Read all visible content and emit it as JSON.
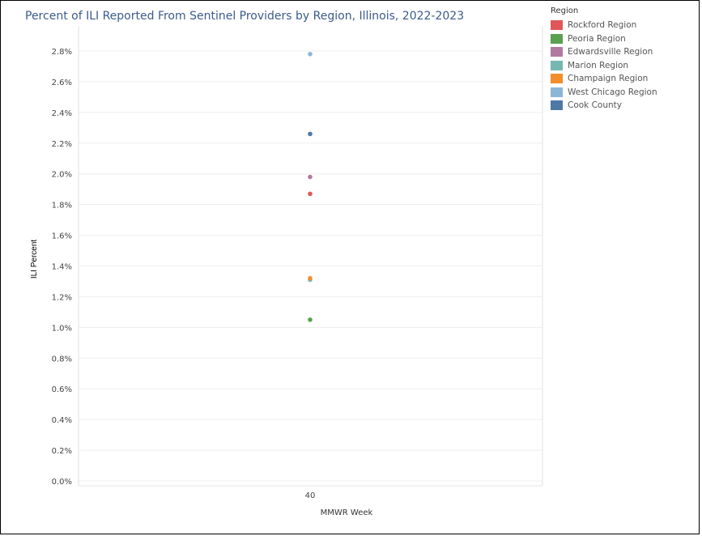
{
  "chart_data": {
    "type": "scatter",
    "title": "Percent of ILI Reported From Sentinel Providers by Region, Illinois, 2022-2023",
    "xlabel": "MMWR Week",
    "ylabel": "ILI Percent",
    "x_categories": [
      "40"
    ],
    "ylim": [
      0,
      2.8
    ],
    "yticks": [
      0.0,
      0.2,
      0.4,
      0.6,
      0.8,
      1.0,
      1.2,
      1.4,
      1.6,
      1.8,
      2.0,
      2.2,
      2.4,
      2.6,
      2.8
    ],
    "ytick_labels": [
      "0.0%",
      "0.2%",
      "0.4%",
      "0.6%",
      "0.8%",
      "1.0%",
      "1.2%",
      "1.4%",
      "1.6%",
      "1.8%",
      "2.0%",
      "2.2%",
      "2.4%",
      "2.6%",
      "2.8%"
    ],
    "grid": true,
    "legend": {
      "title": "Region",
      "placement": "top-right"
    },
    "series": [
      {
        "name": "Rockford Region",
        "color": "#e15759",
        "x": "40",
        "y": 1.87
      },
      {
        "name": "Peoria Region",
        "color": "#59a14f",
        "x": "40",
        "y": 1.05
      },
      {
        "name": "Edwardsville Region",
        "color": "#b07aa1",
        "x": "40",
        "y": 1.98
      },
      {
        "name": "Marion Region",
        "color": "#76b7b2",
        "x": "40",
        "y": 1.31
      },
      {
        "name": "Champaign Region",
        "color": "#f28e2b",
        "x": "40",
        "y": 1.32
      },
      {
        "name": "West Chicago Region",
        "color": "#8cb6d6",
        "x": "40",
        "y": 2.78
      },
      {
        "name": "Cook County",
        "color": "#4e79a7",
        "x": "40",
        "y": 2.26
      }
    ]
  }
}
